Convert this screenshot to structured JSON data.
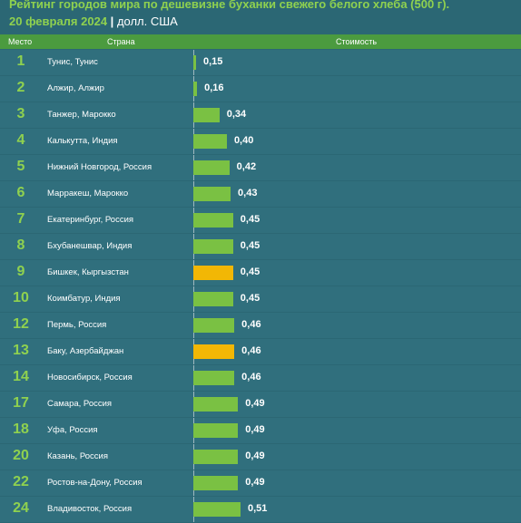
{
  "title": {
    "line1": "Рейтинг городов мира по дешевизне буханки свежего белого хлеба (500 г).",
    "date": "20 февраля 2024",
    "separator": "|",
    "unit": "долл. США"
  },
  "columns": {
    "rank": "Место",
    "country": "Страна",
    "cost": "Стоимость"
  },
  "colors": {
    "background": "#2b6774",
    "header_bar": "#4b9b3f",
    "accent_green": "#8fd14f",
    "bar_green": "#7ac143",
    "bar_highlight": "#f2b705"
  },
  "chart_data": {
    "type": "bar",
    "orientation": "horizontal",
    "categories": [
      "Тунис, Тунис",
      "Алжир, Алжир",
      "Танжер, Марокко",
      "Калькутта, Индия",
      "Нижний Новгород, Россия",
      "Марракеш, Марокко",
      "Екатеринбург, Россия",
      "Бхубанешвар, Индия",
      "Бишкек, Кыргызстан",
      "Коимбатур, Индия",
      "Пермь, Россия",
      "Баку, Азербайджан",
      "Новосибирск, Россия",
      "Самара, Россия",
      "Уфа, Россия",
      "Казань, Россия",
      "Ростов-на-Дону, Россия",
      "Владивосток, Россия"
    ],
    "ranks": [
      "1",
      "2",
      "3",
      "4",
      "5",
      "6",
      "7",
      "8",
      "9",
      "10",
      "12",
      "13",
      "14",
      "17",
      "18",
      "20",
      "22",
      "24"
    ],
    "values": [
      0.15,
      0.16,
      0.34,
      0.4,
      0.42,
      0.43,
      0.45,
      0.45,
      0.45,
      0.45,
      0.46,
      0.46,
      0.46,
      0.49,
      0.49,
      0.49,
      0.49,
      0.51
    ],
    "value_labels": [
      "0,15",
      "0,16",
      "0,34",
      "0,40",
      "0,42",
      "0,43",
      "0,45",
      "0,45",
      "0,45",
      "0,45",
      "0,46",
      "0,46",
      "0,46",
      "0,49",
      "0,49",
      "0,49",
      "0,49",
      "0,51"
    ],
    "highlighted": [
      false,
      false,
      false,
      false,
      false,
      false,
      false,
      false,
      true,
      false,
      false,
      true,
      false,
      false,
      false,
      false,
      false,
      false
    ],
    "xlim": [
      0.13,
      0.52
    ],
    "grid": false
  }
}
